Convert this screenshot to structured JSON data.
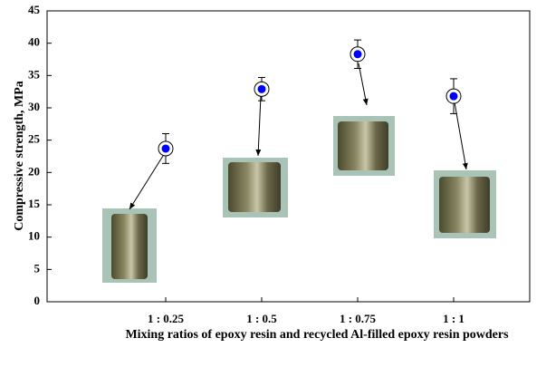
{
  "chart_data": {
    "type": "scatter",
    "y_label": "Compressive strength, MPa",
    "x_label": "Mixing ratios of epoxy resin and recycled Al-filled epoxy resin powders",
    "categories": [
      "1 : 0.25",
      "1 : 0.5",
      "1 : 0.75",
      "1 : 1"
    ],
    "values": [
      23.7,
      32.9,
      38.3,
      31.8
    ],
    "errors": [
      2.3,
      1.8,
      2.2,
      2.7
    ],
    "color": "#0000ff",
    "ylim": [
      0,
      45
    ],
    "yticks": [
      0,
      5,
      10,
      15,
      20,
      25,
      30,
      35,
      40,
      45
    ]
  }
}
